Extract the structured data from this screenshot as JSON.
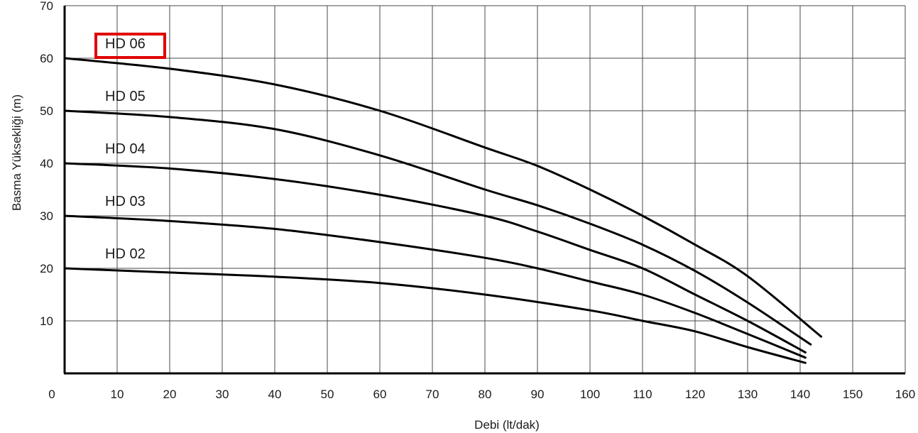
{
  "chart_data": {
    "type": "line",
    "xlabel": "Debi (lt/dak)",
    "ylabel": "Basma Yüksekliği (m)",
    "xlim": [
      0,
      160
    ],
    "ylim": [
      0,
      70
    ],
    "x_ticks": [
      0,
      10,
      20,
      30,
      40,
      50,
      60,
      70,
      80,
      90,
      100,
      110,
      120,
      130,
      140,
      150,
      160
    ],
    "y_ticks": [
      10,
      20,
      30,
      40,
      50,
      60,
      70
    ],
    "grid": true,
    "legend": "none",
    "line_color": "#000000",
    "highlight_color": "#e00000",
    "highlighted_series": "HD 06",
    "series": [
      {
        "name": "HD 02",
        "x": [
          0,
          20,
          40,
          60,
          80,
          100,
          110,
          120,
          130,
          141
        ],
        "y": [
          20,
          19.2,
          18.4,
          17.2,
          15,
          12,
          10,
          8,
          5,
          2
        ]
      },
      {
        "name": "HD 03",
        "x": [
          0,
          20,
          40,
          60,
          80,
          90,
          100,
          110,
          120,
          130,
          141
        ],
        "y": [
          30,
          29,
          27.5,
          25,
          22,
          20,
          17.5,
          15,
          11.5,
          7.5,
          3
        ]
      },
      {
        "name": "HD 04",
        "x": [
          0,
          20,
          40,
          60,
          80,
          90,
          100,
          110,
          120,
          130,
          141
        ],
        "y": [
          40,
          39,
          37,
          34,
          30,
          27,
          23.5,
          20,
          15,
          10,
          4
        ]
      },
      {
        "name": "HD 05",
        "x": [
          0,
          20,
          40,
          60,
          80,
          90,
          100,
          110,
          120,
          130,
          142
        ],
        "y": [
          50,
          48.8,
          46.5,
          41.5,
          35,
          32,
          28.5,
          24.5,
          19.5,
          13.5,
          5.5
        ]
      },
      {
        "name": "HD 06",
        "x": [
          0,
          20,
          40,
          60,
          80,
          90,
          100,
          110,
          120,
          130,
          144
        ],
        "y": [
          60,
          58,
          55,
          50,
          43,
          39.5,
          35,
          30,
          24.5,
          18.5,
          7
        ]
      }
    ]
  }
}
